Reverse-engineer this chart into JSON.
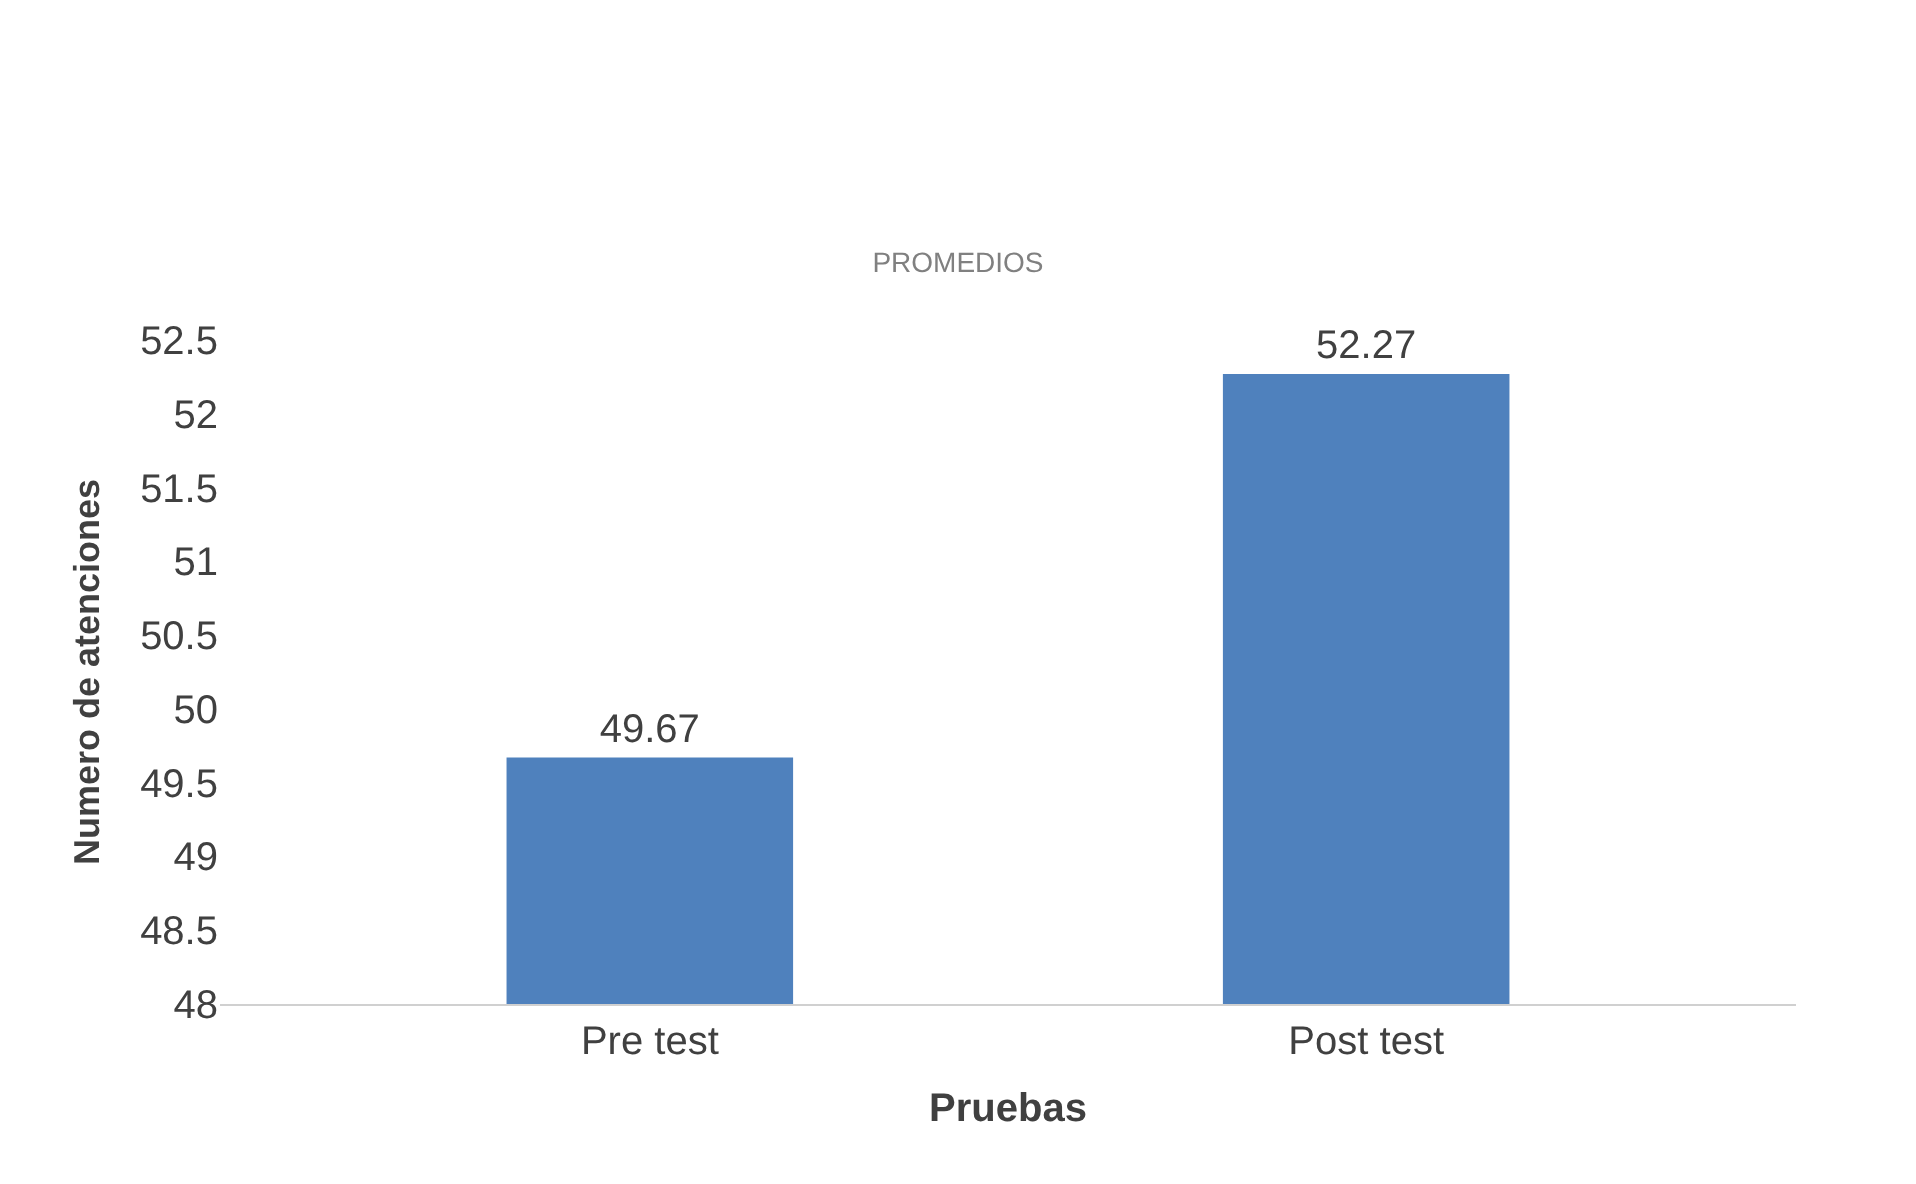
{
  "chart_data": {
    "type": "bar",
    "title": "PROMEDIOS",
    "xlabel": "Pruebas",
    "ylabel": "Numero de atenciones",
    "categories": [
      "Pre test",
      "Post test"
    ],
    "values": [
      49.67,
      52.27
    ],
    "color": "#4f81bd",
    "ylim": [
      48,
      52.5
    ],
    "yticks": [
      48,
      48.5,
      49,
      49.5,
      50,
      50.5,
      51,
      51.5,
      52,
      52.5
    ],
    "data_labels": true
  }
}
